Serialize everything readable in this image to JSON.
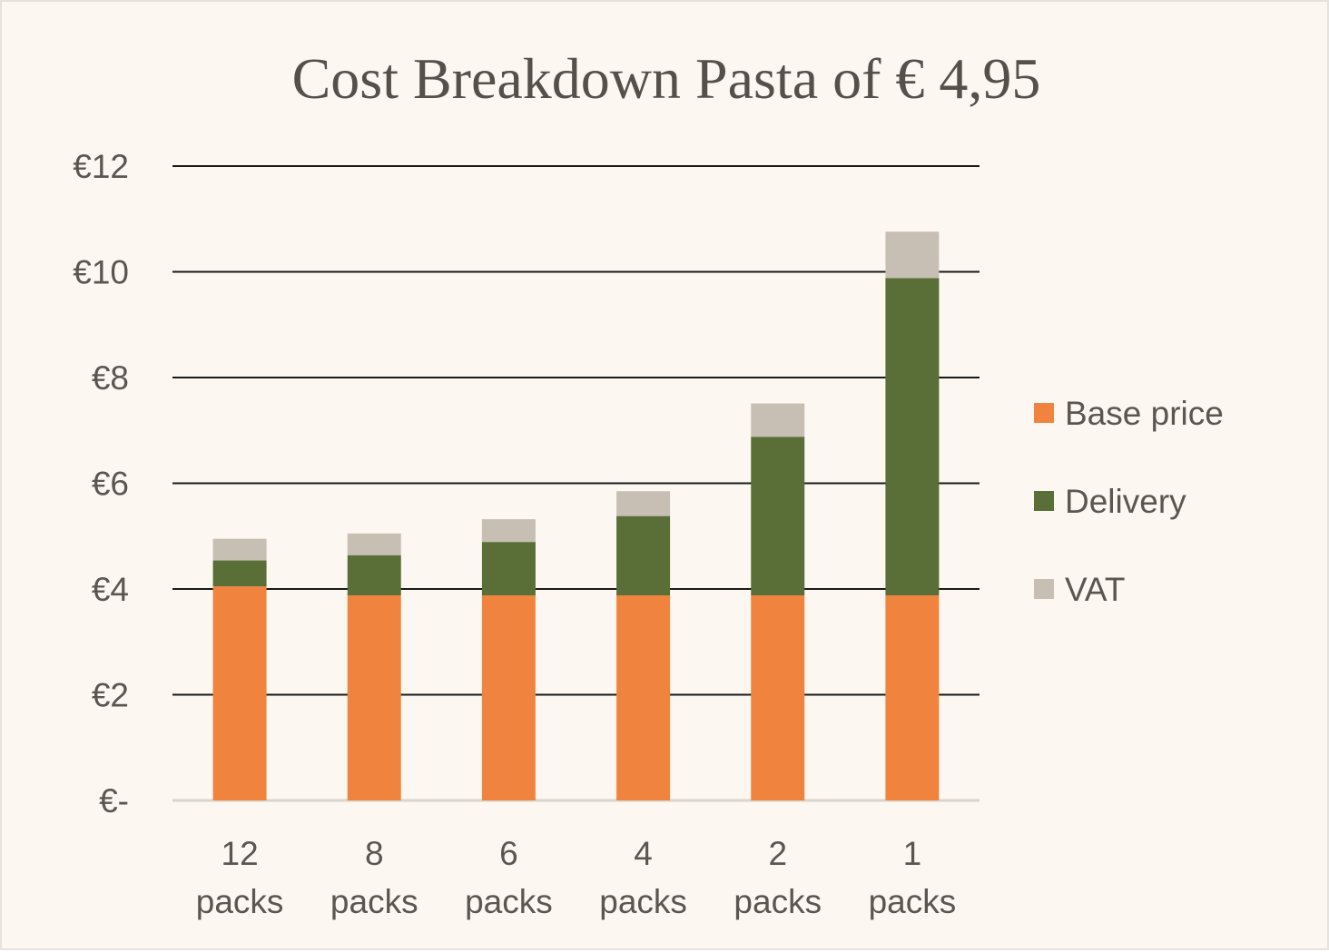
{
  "chart_data": {
    "type": "bar",
    "stacked": true,
    "title": "Cost Breakdown Pasta of € 4,95",
    "xlabel": "",
    "ylabel": "",
    "categories": [
      [
        "12",
        "packs"
      ],
      [
        "8",
        "packs"
      ],
      [
        "6",
        "packs"
      ],
      [
        "4",
        "packs"
      ],
      [
        "2",
        "packs"
      ],
      [
        "1",
        "packs"
      ]
    ],
    "ylim": [
      0,
      12
    ],
    "yticks": [
      0,
      2,
      4,
      6,
      8,
      10,
      12
    ],
    "ytick_labels": [
      "€-",
      "€2",
      "€4",
      "€6",
      "€8",
      "€10",
      "€12"
    ],
    "grid": true,
    "legend_position": "right",
    "series": [
      {
        "name": "Base price",
        "color": "#f0843f",
        "values": [
          4.05,
          3.88,
          3.88,
          3.88,
          3.88,
          3.88
        ]
      },
      {
        "name": "Delivery",
        "color": "#5a6e37",
        "values": [
          0.49,
          0.76,
          1.01,
          1.5,
          3.0,
          6.0
        ]
      },
      {
        "name": "VAT",
        "color": "#c7bfb4",
        "values": [
          0.41,
          0.41,
          0.43,
          0.47,
          0.63,
          0.88
        ]
      }
    ]
  }
}
